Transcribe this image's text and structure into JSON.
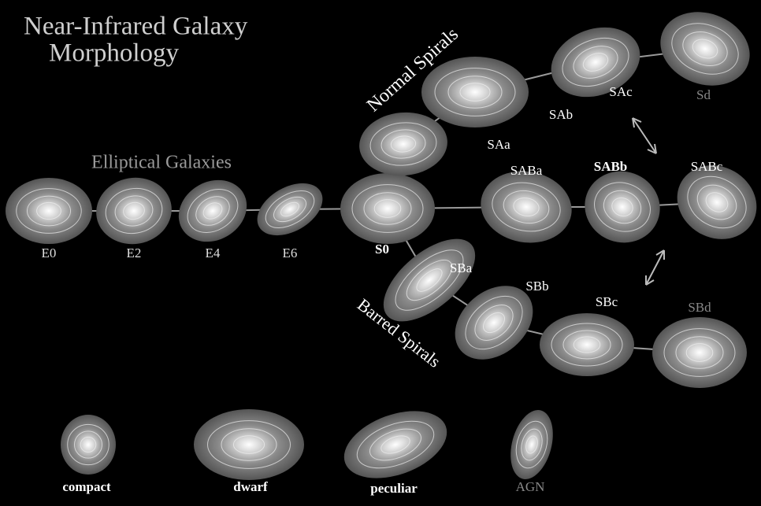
{
  "title": [
    "Near-Infrared Galaxy",
    "Morphology"
  ],
  "groups": {
    "elliptical": "Elliptical Galaxies",
    "normal": "Normal Spirals",
    "barred": "Barred Spirals"
  },
  "galaxies": [
    {
      "label": "E0"
    },
    {
      "label": "E2"
    },
    {
      "label": "E4"
    },
    {
      "label": "E6"
    },
    {
      "label": "S0"
    },
    {
      "label": "SAa"
    },
    {
      "label": "SAb"
    },
    {
      "label": "SAc"
    },
    {
      "label": "Sd"
    },
    {
      "label": "SABa"
    },
    {
      "label": "SABb"
    },
    {
      "label": "SABc"
    },
    {
      "label": "SBa"
    },
    {
      "label": "SBb"
    },
    {
      "label": "SBc"
    },
    {
      "label": "SBd"
    },
    {
      "label": "compact"
    },
    {
      "label": "dwarf"
    },
    {
      "label": "peculiar"
    },
    {
      "label": "AGN"
    }
  ]
}
